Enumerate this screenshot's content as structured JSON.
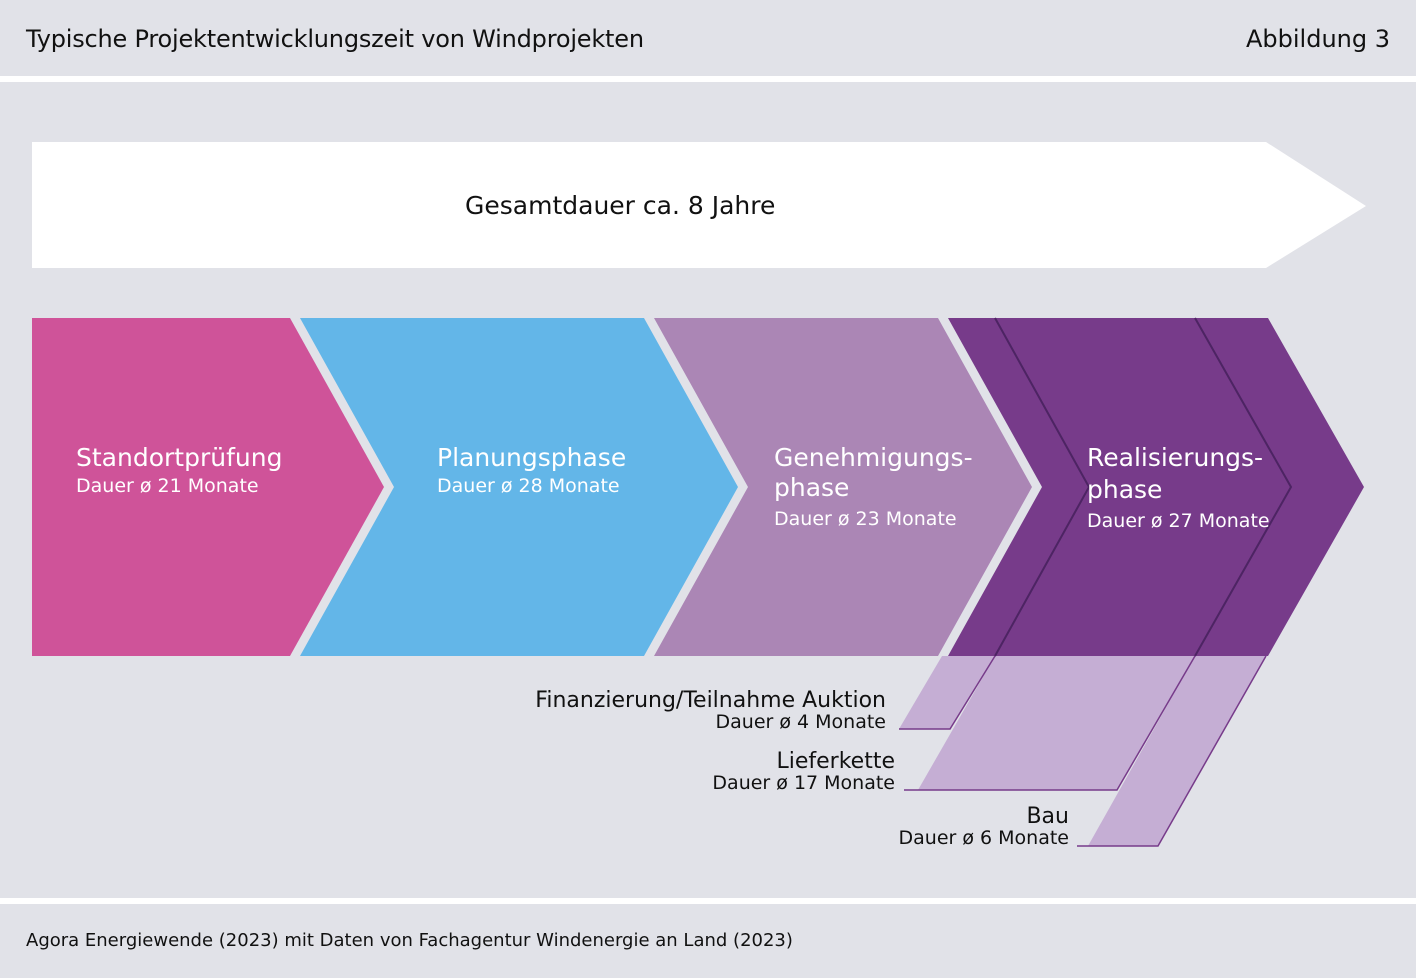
{
  "header": {
    "title": "Typische Projektentwicklungszeit von Windprojekten",
    "figure_label": "Abbildung 3"
  },
  "total": {
    "label": "Gesamtdauer ca. 8 Jahre"
  },
  "phases": [
    {
      "name_line1": "Standortprüfung",
      "name_line2": "",
      "duration": "Dauer ø 21 Monate",
      "color": "#cf5399"
    },
    {
      "name_line1": "Planungsphase",
      "name_line2": "",
      "duration": "Dauer ø 28 Monate",
      "color": "#63b6e8"
    },
    {
      "name_line1": "Genehmigungs-",
      "name_line2": "phase",
      "duration": "Dauer ø 23 Monate",
      "color": "#ab86b5"
    },
    {
      "name_line1": "Realisierungs-",
      "name_line2": "phase",
      "duration": "Dauer ø 27 Monate",
      "color": "#773b8a"
    }
  ],
  "subphases": [
    {
      "name": "Finanzierung/Teilnahme Auktion",
      "duration": "Dauer ø 4 Monate"
    },
    {
      "name": "Lieferkette",
      "duration": "Dauer ø 17 Monate"
    },
    {
      "name": "Bau",
      "duration": "Dauer ø 6 Monate"
    }
  ],
  "colors": {
    "background": "#e1e2e8",
    "subphase_fill": "#c5aed4",
    "subphase_line": "#773b8a"
  },
  "footer": {
    "source": "Agora Energiewende (2023) mit Daten von Fachagentur Windenergie an Land (2023)"
  }
}
